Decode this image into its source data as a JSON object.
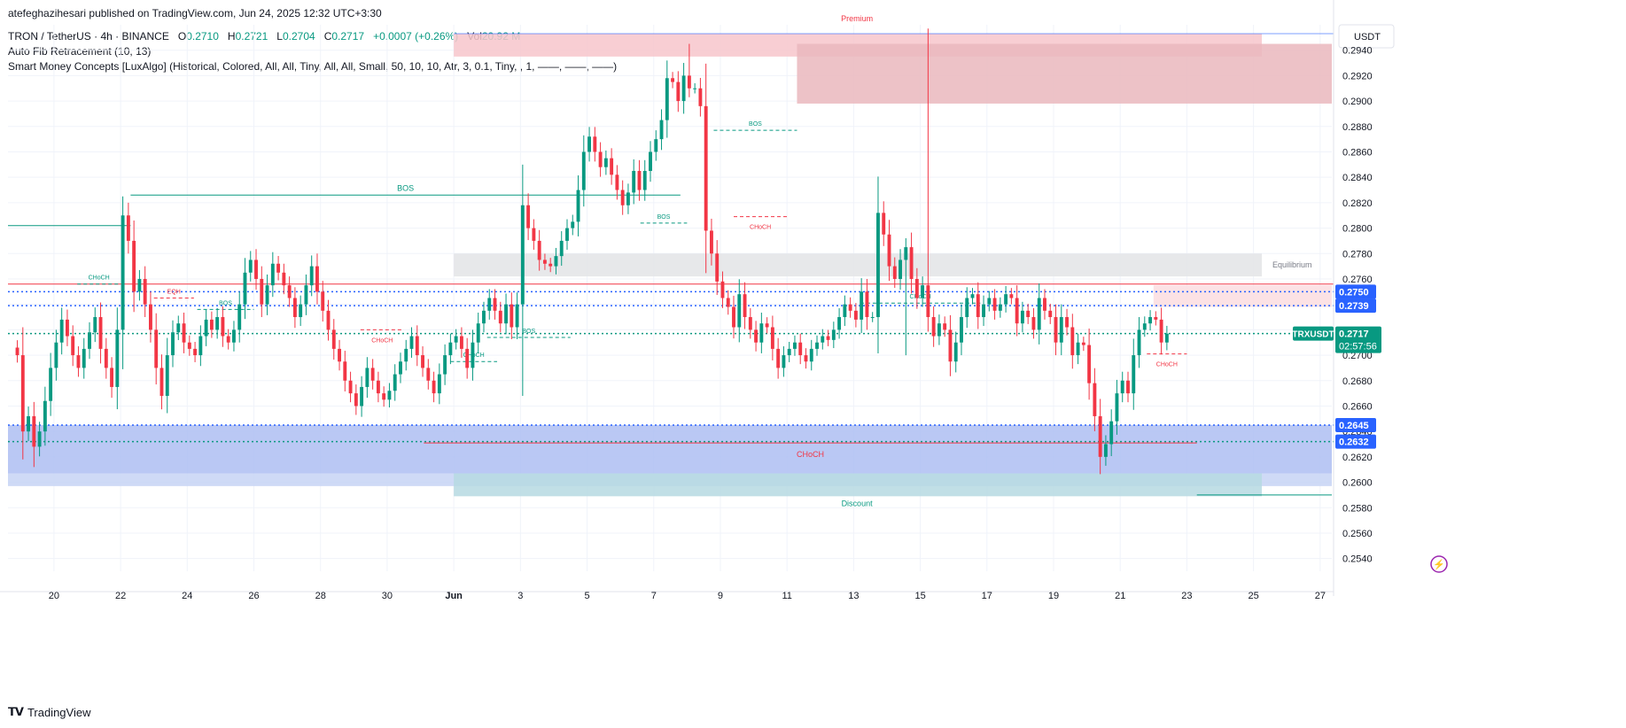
{
  "publisher": "atefeghazihesari published on TradingView.com, Jun 24, 2025 12:32 UTC+3:30",
  "symbol_line": {
    "symbol": "TRON / TetherUS · 4h · BINANCE",
    "o_label": "O",
    "o": "0.2710",
    "h_label": "H",
    "h": "0.2721",
    "l_label": "L",
    "l": "0.2704",
    "c_label": "C",
    "c": "0.2717",
    "change": "+0.0007 (+0.26%)",
    "vol_label": "Vol",
    "vol": "20.92 M"
  },
  "indicators": [
    "Auto Fib Retracement (10, 13)",
    "Smart Money Concepts [LuxAlgo] (Historical, Colored, All, All, Tiny, All, All, Small, 50, 10, 10, Atr, 3, 0.1, Tiny, , 1, ——, ——, ——)"
  ],
  "branding": "TradingView",
  "colors": {
    "up": "#089981",
    "down": "#f23645",
    "axis_text": "#131722",
    "grid": "#f0f3fa"
  },
  "chart_data": {
    "type": "candlestick",
    "currency": "USDT",
    "ylim": [
      0.253,
      0.296
    ],
    "y_ticks": [
      "0.2540",
      "0.2560",
      "0.2580",
      "0.2600",
      "0.2620",
      "0.2640",
      "0.2660",
      "0.2680",
      "0.2700",
      "0.2720",
      "0.2740",
      "0.2760",
      "0.2780",
      "0.2800",
      "0.2820",
      "0.2840",
      "0.2860",
      "0.2880",
      "0.2900",
      "0.2920",
      "0.2940"
    ],
    "x_ticks": [
      {
        "label": "20",
        "day": 20
      },
      {
        "label": "22",
        "day": 22
      },
      {
        "label": "24",
        "day": 24
      },
      {
        "label": "26",
        "day": 26
      },
      {
        "label": "28",
        "day": 28
      },
      {
        "label": "30",
        "day": 30
      },
      {
        "label": "Jun",
        "day": 32
      },
      {
        "label": "3",
        "day": 34
      },
      {
        "label": "5",
        "day": 36
      },
      {
        "label": "7",
        "day": 38
      },
      {
        "label": "9",
        "day": 40
      },
      {
        "label": "11",
        "day": 42
      },
      {
        "label": "13",
        "day": 44
      },
      {
        "label": "15",
        "day": 46
      },
      {
        "label": "17",
        "day": 48
      },
      {
        "label": "19",
        "day": 50
      },
      {
        "label": "21",
        "day": 52
      },
      {
        "label": "23",
        "day": 54
      },
      {
        "label": "25",
        "day": 56
      },
      {
        "label": "27",
        "day": 58
      }
    ],
    "xlim_days": [
      18.62,
      58.35
    ],
    "candle_start_day": 18.9,
    "candles_per_day": 6,
    "closes": [
      0.27,
      0.264,
      0.2652,
      0.2628,
      0.264,
      0.2664,
      0.269,
      0.271,
      0.2728,
      0.2715,
      0.27,
      0.269,
      0.2705,
      0.2718,
      0.273,
      0.2705,
      0.269,
      0.2675,
      0.272,
      0.281,
      0.279,
      0.275,
      0.276,
      0.274,
      0.272,
      0.269,
      0.2668,
      0.27,
      0.2718,
      0.2725,
      0.271,
      0.2705,
      0.27,
      0.2715,
      0.2728,
      0.272,
      0.273,
      0.2715,
      0.271,
      0.272,
      0.274,
      0.2765,
      0.2775,
      0.276,
      0.274,
      0.2755,
      0.2772,
      0.2765,
      0.2755,
      0.2745,
      0.273,
      0.274,
      0.2755,
      0.277,
      0.275,
      0.2735,
      0.272,
      0.2705,
      0.2695,
      0.268,
      0.267,
      0.266,
      0.2675,
      0.269,
      0.268,
      0.267,
      0.2665,
      0.2672,
      0.2685,
      0.2695,
      0.2705,
      0.2715,
      0.27,
      0.269,
      0.268,
      0.267,
      0.2685,
      0.27,
      0.271,
      0.2715,
      0.2705,
      0.269,
      0.271,
      0.2725,
      0.2735,
      0.2745,
      0.2735,
      0.2725,
      0.274,
      0.2722,
      0.274,
      0.2818,
      0.28,
      0.279,
      0.2775,
      0.2772,
      0.277,
      0.2778,
      0.279,
      0.28,
      0.2805,
      0.283,
      0.286,
      0.2872,
      0.286,
      0.2848,
      0.2855,
      0.2842,
      0.283,
      0.2818,
      0.2828,
      0.2845,
      0.283,
      0.2845,
      0.286,
      0.287,
      0.2885,
      0.2918,
      0.2915,
      0.29,
      0.292,
      0.291,
      0.291,
      0.2896,
      0.2798,
      0.278,
      0.2758,
      0.2745,
      0.2738,
      0.2722,
      0.2748,
      0.273,
      0.272,
      0.271,
      0.2725,
      0.2722,
      0.2705,
      0.269,
      0.27,
      0.2705,
      0.271,
      0.27,
      0.2695,
      0.2705,
      0.271,
      0.2715,
      0.2712,
      0.272,
      0.273,
      0.274,
      0.2735,
      0.2728,
      0.275,
      0.273,
      0.273,
      0.2812,
      0.2795,
      0.277,
      0.276,
      0.2775,
      0.2785,
      0.276,
      0.2745,
      0.2755,
      0.273,
      0.2715,
      0.2725,
      0.272,
      0.2695,
      0.271,
      0.273,
      0.2745,
      0.2748,
      0.273,
      0.274,
      0.2745,
      0.2735,
      0.274,
      0.2748,
      0.2745,
      0.2725,
      0.2735,
      0.273,
      0.272,
      0.2745,
      0.2735,
      0.273,
      0.271,
      0.273,
      0.2722,
      0.27,
      0.271,
      0.2708,
      0.2678,
      0.2652,
      0.262,
      0.263,
      0.2648,
      0.267,
      0.268,
      0.267,
      0.27,
      0.272,
      0.2725,
      0.273,
      0.2728,
      0.271,
      0.2717
    ],
    "price_labels": [
      {
        "value": "0.2750",
        "price": 0.275,
        "color": "#2962ff"
      },
      {
        "value": "0.2739",
        "price": 0.2739,
        "color": "#2962ff"
      },
      {
        "value": "0.2645",
        "price": 0.2645,
        "color": "#2962ff"
      },
      {
        "value": "0.2632",
        "price": 0.2632,
        "color": "#2962ff"
      }
    ],
    "current_price": {
      "symbol": "TRXUSDT",
      "value": "0.2717",
      "price": 0.2717,
      "countdown": "02:57:56",
      "color": "#089981"
    },
    "zones": [
      {
        "label": "Premium",
        "top": 0.2953,
        "bottom": 0.2935,
        "d0": 32.0,
        "d1": 56.25,
        "fill": "#f7c6cb"
      },
      {
        "label": "",
        "top": 0.2945,
        "bottom": 0.2898,
        "d0": 42.3,
        "d1": 58.35,
        "fill": "#eab7bd"
      },
      {
        "label": "Equilibrium",
        "top": 0.278,
        "bottom": 0.2762,
        "d0": 32.0,
        "d1": 56.25,
        "fill": "#e3e4e6"
      },
      {
        "label": "",
        "top": 0.2755,
        "bottom": 0.2738,
        "d0": 53.0,
        "d1": 58.35,
        "fill": "#fbdde0"
      },
      {
        "label": "",
        "top": 0.2645,
        "bottom": 0.2607,
        "d0": 18.62,
        "d1": 58.35,
        "fill": "#aebef2"
      },
      {
        "label": "",
        "top": 0.2607,
        "bottom": 0.2597,
        "d0": 18.62,
        "d1": 58.35,
        "fill": "#c7d3f5"
      },
      {
        "label": "Discount",
        "top": 0.2607,
        "bottom": 0.2589,
        "d0": 32.0,
        "d1": 56.25,
        "fill": "#b6d9e2"
      }
    ],
    "structure_labels": [
      {
        "text": "BOS",
        "price": 0.2826,
        "d0": 22.3,
        "d1": 38.8,
        "color": "#089981",
        "style": "solid"
      },
      {
        "text": "BOS",
        "price": 0.2877,
        "d0": 39.8,
        "d1": 42.3,
        "color": "#089981",
        "style": "dash"
      },
      {
        "text": "BOS",
        "price": 0.2804,
        "d0": 37.6,
        "d1": 39.0,
        "color": "#089981",
        "style": "dash"
      },
      {
        "text": "BOS",
        "price": 0.2736,
        "d0": 24.3,
        "d1": 26.0,
        "color": "#089981",
        "style": "dash"
      },
      {
        "text": "BOS",
        "price": 0.2714,
        "d0": 33.0,
        "d1": 35.5,
        "color": "#089981",
        "style": "dash"
      },
      {
        "text": "CHoCH",
        "price": 0.2756,
        "d0": 20.7,
        "d1": 22.0,
        "color": "#089981",
        "style": "dash"
      },
      {
        "text": "CHoCH",
        "price": 0.2695,
        "d0": 31.9,
        "d1": 33.3,
        "color": "#089981",
        "style": "dash"
      },
      {
        "text": "CHoCH",
        "price": 0.2741,
        "d0": 44.2,
        "d1": 47.8,
        "color": "#089981",
        "style": "dash"
      },
      {
        "text": "CHoCH",
        "price": 0.2809,
        "d0": 40.4,
        "d1": 42.0,
        "color": "#f23645",
        "style": "dash"
      },
      {
        "text": "CHoCH",
        "price": 0.272,
        "d0": 29.2,
        "d1": 30.5,
        "color": "#f23645",
        "style": "dash"
      },
      {
        "text": "CHoCH",
        "price": 0.2701,
        "d0": 52.8,
        "d1": 54.0,
        "color": "#f23645",
        "style": "dash"
      },
      {
        "text": "CHoCH",
        "price": 0.2631,
        "d0": 31.1,
        "d1": 54.3,
        "color": "#f23645",
        "style": "solid"
      },
      {
        "text": "EQH",
        "price": 0.2745,
        "d0": 23.0,
        "d1": 24.2,
        "color": "#f23645",
        "style": "dash"
      }
    ],
    "hlines": [
      {
        "price": 0.2756,
        "color": "#f23645",
        "style": "solid"
      },
      {
        "price": 0.275,
        "color": "#2962ff",
        "style": "dot"
      },
      {
        "price": 0.2739,
        "color": "#2962ff",
        "style": "dot"
      },
      {
        "price": 0.2645,
        "color": "#2962ff",
        "style": "dot"
      },
      {
        "price": 0.2632,
        "color": "#089981",
        "style": "dot"
      },
      {
        "price": 0.2717,
        "color": "#089981",
        "style": "dot"
      }
    ]
  }
}
